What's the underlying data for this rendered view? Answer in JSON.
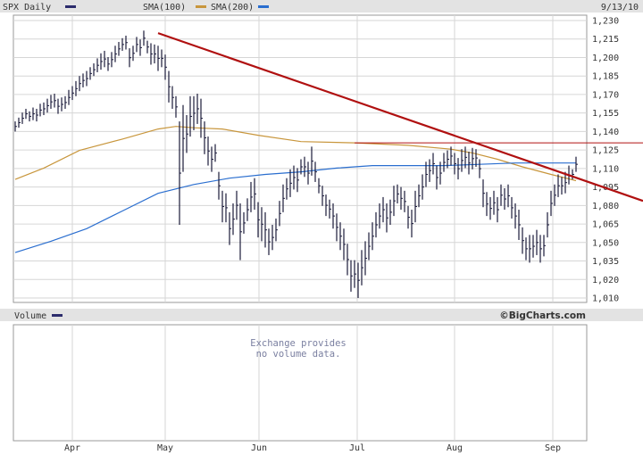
{
  "header": {
    "symbol_label": "SPX Daily",
    "sma100_label": "SMA(100)",
    "sma200_label": "SMA(200)",
    "date_label": "9/13/10"
  },
  "volume_panel": {
    "title": "Volume",
    "brand": "©BigCharts.com",
    "message_line1": "Exchange provides",
    "message_line2": "no volume data."
  },
  "colors": {
    "price": "#1a1a3a",
    "sma100": "#c8963c",
    "sma200": "#2a6ecf",
    "trendline": "#b01010",
    "grid": "#d6d6d6",
    "legend_swatch": "#2c2c6c"
  },
  "chart_data": {
    "type": "ohlc",
    "symbol": "SPX",
    "ylim": [
      1010,
      1230
    ],
    "yticks": [
      "1,010",
      "1,020",
      "1,035",
      "1,050",
      "1,065",
      "1,080",
      "1,095",
      "1,110",
      "1,125",
      "1,140",
      "1,155",
      "1,170",
      "1,185",
      "1,200",
      "1,215",
      "1,230"
    ],
    "xlabels": [
      "Apr",
      "May",
      "Jun",
      "Jul",
      "Aug",
      "Sep"
    ],
    "bars": [
      [
        1142,
        1150
      ],
      [
        1145,
        1153
      ],
      [
        1148,
        1157
      ],
      [
        1152,
        1160
      ],
      [
        1150,
        1158
      ],
      [
        1151,
        1161
      ],
      [
        1150,
        1160
      ],
      [
        1154,
        1164
      ],
      [
        1155,
        1165
      ],
      [
        1157,
        1168
      ],
      [
        1160,
        1171
      ],
      [
        1161,
        1172
      ],
      [
        1156,
        1168
      ],
      [
        1158,
        1169
      ],
      [
        1160,
        1170
      ],
      [
        1163,
        1175
      ],
      [
        1167,
        1178
      ],
      [
        1170,
        1182
      ],
      [
        1174,
        1186
      ],
      [
        1177,
        1188
      ],
      [
        1178,
        1190
      ],
      [
        1183,
        1193
      ],
      [
        1186,
        1196
      ],
      [
        1189,
        1200
      ],
      [
        1191,
        1204
      ],
      [
        1193,
        1206
      ],
      [
        1190,
        1201
      ],
      [
        1193,
        1205
      ],
      [
        1197,
        1210
      ],
      [
        1202,
        1213
      ],
      [
        1206,
        1216
      ],
      [
        1207,
        1218
      ],
      [
        1193,
        1208
      ],
      [
        1198,
        1210
      ],
      [
        1205,
        1217
      ],
      [
        1202,
        1215
      ],
      [
        1210,
        1222
      ],
      [
        1204,
        1214
      ],
      [
        1195,
        1212
      ],
      [
        1196,
        1211
      ],
      [
        1190,
        1210
      ],
      [
        1193,
        1207
      ],
      [
        1183,
        1203
      ],
      [
        1165,
        1190
      ],
      [
        1160,
        1178
      ],
      [
        1153,
        1170
      ],
      [
        1068,
        1150
      ],
      [
        1110,
        1163
      ],
      [
        1125,
        1155
      ],
      [
        1138,
        1170
      ],
      [
        1143,
        1170
      ],
      [
        1148,
        1172
      ],
      [
        1137,
        1168
      ],
      [
        1124,
        1150
      ],
      [
        1115,
        1138
      ],
      [
        1110,
        1130
      ],
      [
        1118,
        1132
      ],
      [
        1088,
        1110
      ],
      [
        1070,
        1095
      ],
      [
        1070,
        1093
      ],
      [
        1052,
        1078
      ],
      [
        1060,
        1085
      ],
      [
        1072,
        1095
      ],
      [
        1040,
        1085
      ],
      [
        1061,
        1078
      ],
      [
        1071,
        1089
      ],
      [
        1078,
        1102
      ],
      [
        1080,
        1105
      ],
      [
        1058,
        1086
      ],
      [
        1055,
        1082
      ],
      [
        1050,
        1078
      ],
      [
        1044,
        1065
      ],
      [
        1048,
        1068
      ],
      [
        1055,
        1073
      ],
      [
        1067,
        1087
      ],
      [
        1078,
        1100
      ],
      [
        1088,
        1105
      ],
      [
        1090,
        1112
      ],
      [
        1096,
        1115
      ],
      [
        1094,
        1113
      ],
      [
        1108,
        1120
      ],
      [
        1106,
        1122
      ],
      [
        1100,
        1118
      ],
      [
        1107,
        1130
      ],
      [
        1102,
        1118
      ],
      [
        1093,
        1105
      ],
      [
        1083,
        1099
      ],
      [
        1075,
        1092
      ],
      [
        1073,
        1088
      ],
      [
        1065,
        1085
      ],
      [
        1055,
        1077
      ],
      [
        1048,
        1070
      ],
      [
        1040,
        1065
      ],
      [
        1028,
        1053
      ],
      [
        1015,
        1040
      ],
      [
        1018,
        1040
      ],
      [
        1010,
        1038
      ],
      [
        1020,
        1048
      ],
      [
        1028,
        1055
      ],
      [
        1040,
        1062
      ],
      [
        1048,
        1070
      ],
      [
        1058,
        1078
      ],
      [
        1065,
        1085
      ],
      [
        1070,
        1090
      ],
      [
        1062,
        1085
      ],
      [
        1068,
        1088
      ],
      [
        1075,
        1099
      ],
      [
        1085,
        1100
      ],
      [
        1080,
        1098
      ],
      [
        1078,
        1095
      ],
      [
        1065,
        1083
      ],
      [
        1058,
        1080
      ],
      [
        1070,
        1095
      ],
      [
        1082,
        1100
      ],
      [
        1088,
        1108
      ],
      [
        1098,
        1118
      ],
      [
        1102,
        1120
      ],
      [
        1108,
        1125
      ],
      [
        1096,
        1115
      ],
      [
        1100,
        1118
      ],
      [
        1110,
        1125
      ],
      [
        1113,
        1127
      ],
      [
        1115,
        1130
      ],
      [
        1108,
        1125
      ],
      [
        1104,
        1121
      ],
      [
        1110,
        1128
      ],
      [
        1113,
        1130
      ],
      [
        1108,
        1126
      ],
      [
        1112,
        1129
      ],
      [
        1114,
        1128
      ],
      [
        1105,
        1120
      ],
      [
        1082,
        1104
      ],
      [
        1075,
        1094
      ],
      [
        1072,
        1090
      ],
      [
        1076,
        1095
      ],
      [
        1070,
        1090
      ],
      [
        1083,
        1100
      ],
      [
        1080,
        1097
      ],
      [
        1082,
        1100
      ],
      [
        1073,
        1090
      ],
      [
        1065,
        1085
      ],
      [
        1056,
        1080
      ],
      [
        1045,
        1066
      ],
      [
        1040,
        1058
      ],
      [
        1038,
        1060
      ],
      [
        1042,
        1060
      ],
      [
        1044,
        1064
      ],
      [
        1038,
        1060
      ],
      [
        1043,
        1060
      ],
      [
        1058,
        1078
      ],
      [
        1075,
        1095
      ],
      [
        1083,
        1100
      ],
      [
        1090,
        1108
      ],
      [
        1092,
        1106
      ],
      [
        1093,
        1110
      ],
      [
        1100,
        1115
      ],
      [
        1104,
        1112
      ],
      [
        1110,
        1122
      ]
    ],
    "sma100": [
      [
        0,
        1104
      ],
      [
        8,
        1113
      ],
      [
        18,
        1127
      ],
      [
        30,
        1136
      ],
      [
        40,
        1144
      ],
      [
        45,
        1146
      ],
      [
        50,
        1145
      ],
      [
        58,
        1144
      ],
      [
        68,
        1139
      ],
      [
        80,
        1134
      ],
      [
        95,
        1133
      ],
      [
        110,
        1131
      ],
      [
        122,
        1128
      ],
      [
        128,
        1125
      ],
      [
        135,
        1120
      ],
      [
        142,
        1114
      ],
      [
        150,
        1108
      ],
      [
        157,
        1103
      ]
    ],
    "sma200": [
      [
        0,
        1046
      ],
      [
        10,
        1055
      ],
      [
        20,
        1065
      ],
      [
        30,
        1079
      ],
      [
        40,
        1093
      ],
      [
        50,
        1100
      ],
      [
        60,
        1105
      ],
      [
        70,
        1108
      ],
      [
        80,
        1110
      ],
      [
        90,
        1113
      ],
      [
        100,
        1115
      ],
      [
        110,
        1115
      ],
      [
        120,
        1115
      ],
      [
        130,
        1116
      ],
      [
        140,
        1117
      ],
      [
        150,
        1117
      ],
      [
        157,
        1117
      ]
    ],
    "trendline": [
      [
        40,
        1220
      ],
      [
        168,
        1087
      ]
    ],
    "resistance": [
      [
        95,
        1133
      ],
      [
        168,
        1133
      ]
    ]
  }
}
